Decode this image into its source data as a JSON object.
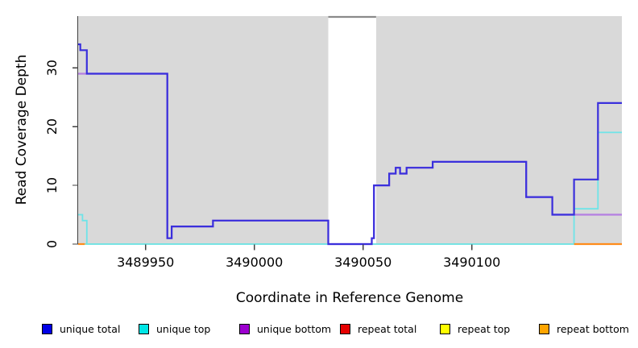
{
  "chart_data": {
    "type": "line",
    "subtype": "step-coverage-plot",
    "title": "",
    "xlabel": "Coordinate in Reference Genome",
    "ylabel": "Read Coverage Depth",
    "xlim": [
      3489919,
      3490169
    ],
    "ylim": [
      0,
      38.8
    ],
    "xticks": [
      3489950,
      3490000,
      3490050,
      3490100
    ],
    "yticks": [
      0,
      10,
      20,
      30
    ],
    "grid": "off",
    "legend_position": "bottom",
    "plot_background": "#d9d9d9",
    "axis_color": "#404040",
    "gap_region": {
      "x_start": 3490034,
      "x_end": 3490056,
      "fill": "#ffffff",
      "top_border": "#8a8a8a"
    },
    "baseline_series": {
      "name": "zero baseline",
      "color": "#8ed18e",
      "width": 1.6,
      "segments": [
        {
          "steps": [
            [
              3489919,
              0
            ]
          ],
          "x_end": 3490169
        }
      ]
    },
    "series": [
      {
        "name": "unique total",
        "line_color": "#3a30dc",
        "legend_color": "#0000e6",
        "width": 2.2,
        "segments": [
          {
            "steps": [
              [
                3489919,
                34
              ],
              [
                3489920,
                33
              ],
              [
                3489923,
                29
              ],
              [
                3489960,
                1
              ],
              [
                3489962,
                3
              ],
              [
                3489981,
                4
              ],
              [
                3490034,
                0
              ],
              [
                3490054,
                1
              ],
              [
                3490055,
                10
              ],
              [
                3490062,
                12
              ],
              [
                3490065,
                13
              ],
              [
                3490067,
                12
              ],
              [
                3490070,
                13
              ],
              [
                3490082,
                14
              ],
              [
                3490125,
                8
              ],
              [
                3490137,
                5
              ],
              [
                3490147,
                11
              ],
              [
                3490158,
                24
              ]
            ],
            "x_end": 3490169
          }
        ]
      },
      {
        "name": "unique top",
        "line_color": "#6ee4e8",
        "legend_color": "#00e6e6",
        "width": 1.8,
        "segments": [
          {
            "steps": [
              [
                3489919,
                5
              ],
              [
                3489921,
                4
              ],
              [
                3489923,
                0
              ],
              [
                3490147,
                6
              ],
              [
                3490158,
                19
              ]
            ],
            "x_end": 3490169
          }
        ]
      },
      {
        "name": "unique bottom",
        "line_color": "#b47fe2",
        "legend_color": "#9c00cf",
        "width": 2.2,
        "segments": [
          {
            "steps": [
              [
                3489919,
                29
              ],
              [
                3489960,
                1
              ],
              [
                3489962,
                3
              ],
              [
                3489981,
                4
              ],
              [
                3490034,
                0
              ],
              [
                3490054,
                1
              ],
              [
                3490055,
                10
              ],
              [
                3490062,
                12
              ],
              [
                3490065,
                13
              ],
              [
                3490067,
                12
              ],
              [
                3490070,
                13
              ],
              [
                3490082,
                14
              ],
              [
                3490125,
                8
              ],
              [
                3490137,
                5
              ]
            ],
            "x_end": 3490169
          }
        ]
      },
      {
        "name": "repeat total",
        "line_color": "#e60000",
        "legend_color": "#e60000",
        "width": 2.0,
        "segments": []
      },
      {
        "name": "repeat top",
        "line_color": "#ffff00",
        "legend_color": "#ffff00",
        "width": 2.0,
        "segments": []
      },
      {
        "name": "repeat bottom",
        "line_color": "#ff8c1a",
        "legend_color": "#ffa500",
        "width": 2.2,
        "segments": [
          {
            "steps": [
              [
                3489919,
                0
              ]
            ],
            "x_end": 3489922
          },
          {
            "steps": [
              [
                3490147,
                0
              ]
            ],
            "x_end": 3490169
          }
        ]
      }
    ]
  }
}
